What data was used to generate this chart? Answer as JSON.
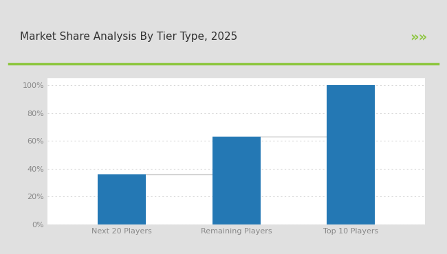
{
  "title": "Market Share Analysis By Tier Type, 2025",
  "categories": [
    "Next 20 Players",
    "Remaining Players",
    "Top 10 Players"
  ],
  "values": [
    36,
    63,
    100
  ],
  "bar_color": "#2478B4",
  "connector_color": "#c8c8c8",
  "outer_bg_color": "#e0e0e0",
  "inner_bg_color": "#f5f5f5",
  "plot_bg_color": "#ffffff",
  "title_bg_color": "#ffffff",
  "title_color": "#333333",
  "axis_label_color": "#888888",
  "grid_color": "#d8d8d8",
  "green_line_color": "#8dc63f",
  "chevron_color": "#8dc63f",
  "ylim": [
    0,
    105
  ],
  "yticks": [
    0,
    20,
    40,
    60,
    80,
    100
  ],
  "ytick_labels": [
    "0%",
    "20%",
    "40%",
    "60%",
    "80%",
    "100%"
  ],
  "title_fontsize": 11,
  "tick_fontsize": 8,
  "bar_width": 0.42
}
